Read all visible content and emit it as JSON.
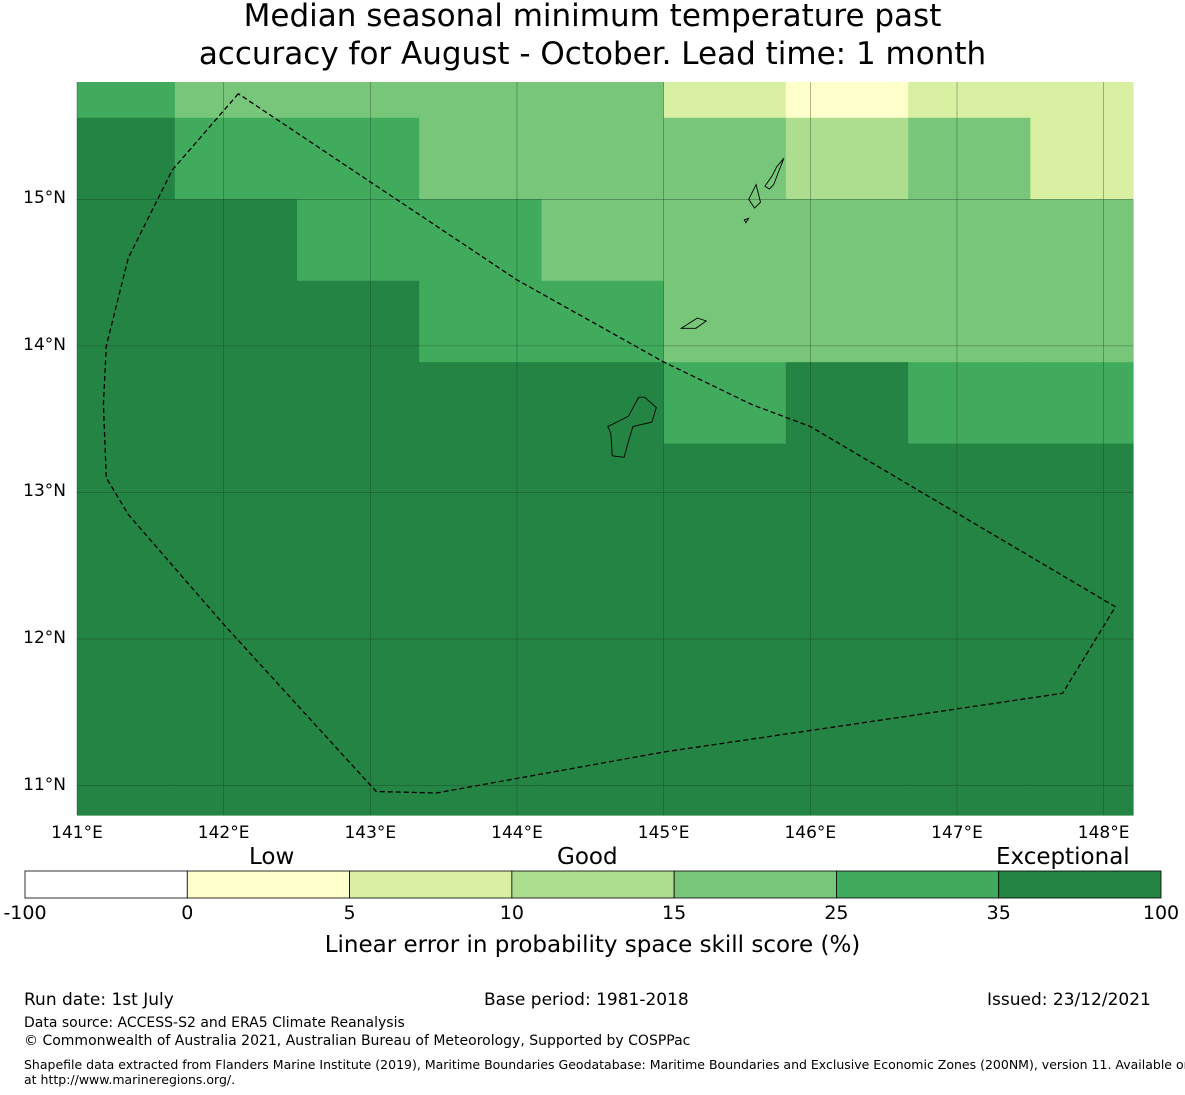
{
  "title": {
    "line1": "Median seasonal minimum temperature past",
    "line2": "accuracy for August - October. Lead time: 1 month"
  },
  "map": {
    "lon_range": [
      141.0,
      148.2
    ],
    "lat_range": [
      10.8,
      15.8
    ],
    "lon_ticks": [
      141,
      142,
      143,
      144,
      145,
      146,
      147,
      148
    ],
    "lat_ticks": [
      11,
      12,
      13,
      14,
      15
    ],
    "lon_tick_labels": [
      "141°E",
      "142°E",
      "143°E",
      "144°E",
      "145°E",
      "146°E",
      "147°E",
      "148°E"
    ],
    "lat_tick_labels": [
      "11°N",
      "12°N",
      "13°N",
      "14°N",
      "15°N"
    ],
    "gridlines": true,
    "grid_lon_edges": [
      141.0,
      141.667,
      142.5,
      143.333,
      144.167,
      145.0,
      145.833,
      146.667,
      147.5,
      148.2
    ],
    "grid_lat_edges": [
      15.8,
      15.556,
      15.0,
      14.444,
      13.889,
      13.333,
      10.8
    ],
    "category_colors": [
      "#ffffff",
      "#ffffcc",
      "#d9f0a3",
      "#addd8e",
      "#78c679",
      "#41ab5d",
      "#238443"
    ],
    "grid_categories": [
      [
        5,
        4,
        4,
        4,
        4,
        2,
        1,
        2,
        2
      ],
      [
        6,
        5,
        5,
        4,
        4,
        4,
        3,
        4,
        2
      ],
      [
        6,
        6,
        5,
        5,
        4,
        4,
        4,
        4,
        4
      ],
      [
        6,
        6,
        6,
        5,
        5,
        4,
        4,
        4,
        4
      ],
      [
        6,
        6,
        6,
        6,
        6,
        5,
        6,
        5,
        5
      ],
      [
        6,
        6,
        6,
        6,
        6,
        6,
        6,
        6,
        6
      ]
    ],
    "eez_boundary": [
      [
        142.1,
        15.72
      ],
      [
        141.65,
        15.2
      ],
      [
        141.35,
        14.6
      ],
      [
        141.2,
        14.0
      ],
      [
        141.18,
        13.6
      ],
      [
        141.2,
        13.1
      ],
      [
        141.35,
        12.85
      ],
      [
        142.0,
        12.1
      ],
      [
        143.04,
        10.96
      ],
      [
        143.45,
        10.95
      ],
      [
        145.0,
        11.23
      ],
      [
        146.5,
        11.45
      ],
      [
        147.72,
        11.63
      ],
      [
        148.08,
        12.22
      ],
      [
        146.0,
        13.45
      ],
      [
        145.6,
        13.6
      ],
      [
        145.0,
        13.89
      ],
      [
        144.0,
        14.45
      ],
      [
        142.1,
        15.72
      ]
    ],
    "islands": [
      {
        "name": "Guam",
        "outline": [
          [
            144.87,
            13.65
          ],
          [
            144.95,
            13.58
          ],
          [
            144.92,
            13.48
          ],
          [
            144.79,
            13.45
          ],
          [
            144.76,
            13.35
          ],
          [
            144.73,
            13.24
          ],
          [
            144.65,
            13.25
          ],
          [
            144.64,
            13.4
          ],
          [
            144.62,
            13.45
          ],
          [
            144.66,
            13.47
          ],
          [
            144.76,
            13.52
          ],
          [
            144.83,
            13.65
          ],
          [
            144.87,
            13.65
          ]
        ]
      },
      {
        "name": "Rota",
        "outline": [
          [
            145.12,
            14.12
          ],
          [
            145.23,
            14.19
          ],
          [
            145.29,
            14.17
          ],
          [
            145.22,
            14.12
          ],
          [
            145.12,
            14.12
          ]
        ]
      },
      {
        "name": "Saipan",
        "outline": [
          [
            145.82,
            15.28
          ],
          [
            145.77,
            15.22
          ],
          [
            145.74,
            15.16
          ],
          [
            145.69,
            15.09
          ],
          [
            145.72,
            15.07
          ],
          [
            145.75,
            15.1
          ],
          [
            145.78,
            15.18
          ],
          [
            145.82,
            15.28
          ]
        ]
      },
      {
        "name": "Tinian",
        "outline": [
          [
            145.63,
            15.1
          ],
          [
            145.66,
            14.98
          ],
          [
            145.62,
            14.94
          ],
          [
            145.58,
            15.0
          ],
          [
            145.63,
            15.1
          ]
        ]
      },
      {
        "name": "Aguijan",
        "outline": [
          [
            145.55,
            14.86
          ],
          [
            145.58,
            14.87
          ],
          [
            145.56,
            14.84
          ],
          [
            145.55,
            14.86
          ]
        ]
      }
    ]
  },
  "legend": {
    "words": [
      "Low",
      "Good",
      "Exceptional"
    ],
    "boundaries": [
      "-100",
      "0",
      "5",
      "10",
      "15",
      "25",
      "35",
      "100"
    ],
    "colors": [
      "#ffffff",
      "#ffffcc",
      "#d9f0a3",
      "#addd8e",
      "#78c679",
      "#41ab5d",
      "#238443"
    ],
    "title": "Linear error in probability space skill score (%)"
  },
  "footer": {
    "run_date": "Run date: 1st July",
    "base_period": "Base period: 1981-2018",
    "issued": "Issued: 23/12/2021",
    "data_source": "Data source: ACCESS-S2 and ERA5 Climate Reanalysis",
    "copyright": "© Commonwealth of Australia 2021, Australian Bureau of Meteorology, Supported by COSPPac",
    "shapefile_line1": "Shapefile data extracted from Flanders Marine Institute (2019), Maritime Boundaries Geodatabase: Maritime Boundaries and Exclusive Economic Zones (200NM), version 11. Available online",
    "shapefile_line2": "at http://www.marineregions.org/."
  }
}
